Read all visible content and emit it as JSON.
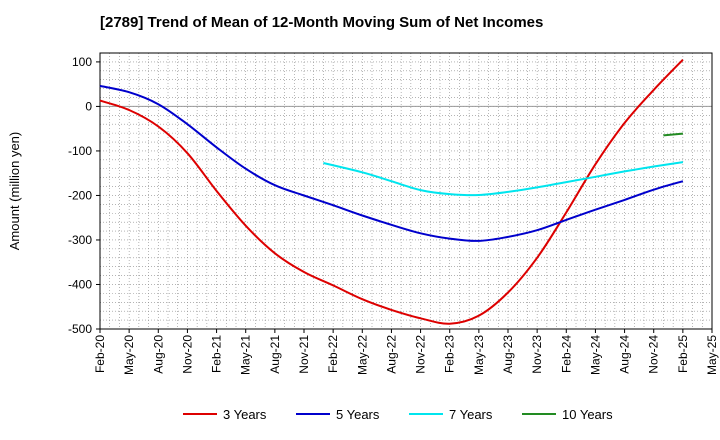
{
  "chart_data": {
    "type": "line",
    "title": "[2789]  Trend of Mean of 12-Month Moving Sum of Net Incomes",
    "ylabel": "Amount (million yen)",
    "xlabel": "",
    "ylim": [
      -500,
      120
    ],
    "yticks": [
      100,
      0,
      -100,
      -200,
      -300,
      -400,
      -500
    ],
    "xticks": [
      "Feb-20",
      "May-20",
      "Aug-20",
      "Nov-20",
      "Feb-21",
      "May-21",
      "Aug-21",
      "Nov-21",
      "Feb-22",
      "May-22",
      "Aug-22",
      "Nov-22",
      "Feb-23",
      "May-23",
      "Aug-23",
      "Nov-23",
      "Feb-24",
      "May-24",
      "Aug-24",
      "Nov-24",
      "Feb-25",
      "May-25"
    ],
    "grid": true,
    "legend_position": "bottom",
    "series": [
      {
        "name": "3 Years",
        "color": "#dd0000",
        "points": [
          [
            "Feb-20",
            13
          ],
          [
            "May-20",
            -8
          ],
          [
            "Aug-20",
            -45
          ],
          [
            "Nov-20",
            -105
          ],
          [
            "Feb-21",
            -190
          ],
          [
            "May-21",
            -268
          ],
          [
            "Aug-21",
            -330
          ],
          [
            "Nov-21",
            -372
          ],
          [
            "Feb-22",
            -402
          ],
          [
            "May-22",
            -433
          ],
          [
            "Aug-22",
            -457
          ],
          [
            "Nov-22",
            -476
          ],
          [
            "Feb-23",
            -488
          ],
          [
            "May-23",
            -470
          ],
          [
            "Aug-23",
            -418
          ],
          [
            "Nov-23",
            -340
          ],
          [
            "Feb-24",
            -238
          ],
          [
            "May-24",
            -130
          ],
          [
            "Aug-24",
            -37
          ],
          [
            "Nov-24",
            37
          ],
          [
            "Feb-25",
            105
          ]
        ]
      },
      {
        "name": "5 Years",
        "color": "#0000cc",
        "points": [
          [
            "Feb-20",
            46
          ],
          [
            "May-20",
            32
          ],
          [
            "Aug-20",
            5
          ],
          [
            "Nov-20",
            -40
          ],
          [
            "Feb-21",
            -92
          ],
          [
            "May-21",
            -140
          ],
          [
            "Aug-21",
            -177
          ],
          [
            "Nov-21",
            -200
          ],
          [
            "Feb-22",
            -222
          ],
          [
            "May-22",
            -245
          ],
          [
            "Aug-22",
            -266
          ],
          [
            "Nov-22",
            -285
          ],
          [
            "Feb-23",
            -297
          ],
          [
            "May-23",
            -302
          ],
          [
            "Aug-23",
            -293
          ],
          [
            "Nov-23",
            -278
          ],
          [
            "Feb-24",
            -255
          ],
          [
            "May-24",
            -232
          ],
          [
            "Aug-24",
            -210
          ],
          [
            "Nov-24",
            -187
          ],
          [
            "Feb-25",
            -168
          ]
        ]
      },
      {
        "name": "7 Years",
        "color": "#00e5ee",
        "points": [
          [
            "Jan-22",
            -127
          ],
          [
            "May-22",
            -148
          ],
          [
            "Aug-22",
            -168
          ],
          [
            "Nov-22",
            -188
          ],
          [
            "Feb-23",
            -197
          ],
          [
            "May-23",
            -199
          ],
          [
            "Aug-23",
            -192
          ],
          [
            "Nov-23",
            -182
          ],
          [
            "Feb-24",
            -170
          ],
          [
            "May-24",
            -158
          ],
          [
            "Aug-24",
            -146
          ],
          [
            "Nov-24",
            -135
          ],
          [
            "Feb-25",
            -125
          ]
        ]
      },
      {
        "name": "10 Years",
        "color": "#228b22",
        "points": [
          [
            "Dec-24",
            -65
          ],
          [
            "Feb-25",
            -61
          ]
        ]
      }
    ]
  }
}
